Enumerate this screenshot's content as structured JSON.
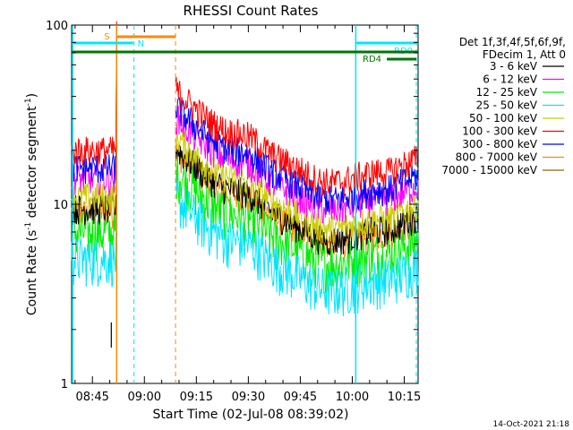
{
  "chart_data": {
    "type": "line",
    "title": "RHESSI Count Rates",
    "xlabel": "Start Time (02-Jul-08 08:39:02)",
    "ylabel_main": "Count Rate (s",
    "ylabel_sup1": "-1",
    "ylabel_mid": " detector segment",
    "ylabel_sup2": "-1",
    "ylabel_end": ")",
    "y_scale": "log",
    "ylim": [
      1,
      100
    ],
    "xlim_minutes_after_0839": [
      0,
      100
    ],
    "x_ticks": [
      {
        "label": "08:45",
        "minute": 6
      },
      {
        "label": "09:00",
        "minute": 21
      },
      {
        "label": "09:15",
        "minute": 36
      },
      {
        "label": "09:30",
        "minute": 51
      },
      {
        "label": "09:45",
        "minute": 66
      },
      {
        "label": "10:00",
        "minute": 81
      },
      {
        "label": "10:15",
        "minute": 96
      }
    ],
    "y_ticks": [
      {
        "label": "1",
        "value": 1
      },
      {
        "label": "10",
        "value": 10
      },
      {
        "label": "100",
        "value": 100
      }
    ],
    "legend_header": [
      "Det 1f,3f,4f,5f,6f,9f,",
      "FDecim 1, Att 0"
    ],
    "series": [
      {
        "name": "3 - 6 keV",
        "color": "#000000",
        "level": 9.5
      },
      {
        "name": "6 - 12 keV",
        "color": "#ff00ff",
        "level": 14
      },
      {
        "name": "12 - 25 keV",
        "color": "#00ee00",
        "level": 7
      },
      {
        "name": "25 - 50 keV",
        "color": "#00e5ff",
        "level": 5
      },
      {
        "name": "50 - 100 keV",
        "color": "#cccc00",
        "level": 11
      },
      {
        "name": "100 - 300 keV",
        "color": "#ff0000",
        "level": 20
      },
      {
        "name": "300 - 800 keV",
        "color": "#0000ff",
        "level": 16
      },
      {
        "name": "800 - 7000 keV",
        "color": "#ff8800",
        "level": 9
      },
      {
        "name": "7000 - 15000 keV",
        "color": "#996600",
        "level": 0
      }
    ],
    "data_gap_minutes": [
      13,
      30
    ],
    "attenuator_bars": [
      {
        "label": "S",
        "color": "#ff8800",
        "start": 13,
        "end": 30
      },
      {
        "label": "N",
        "color": "#00e5ff",
        "start": 0,
        "end": 18
      },
      {
        "label": "RD0",
        "color": "#00e5ff",
        "start": 82,
        "end": 100
      },
      {
        "label": "RD4",
        "color": "#007700",
        "start": 0,
        "end": 100
      }
    ],
    "grid": false,
    "legend_position": "right"
  },
  "timestamp": "14-Oct-2021 21:18"
}
